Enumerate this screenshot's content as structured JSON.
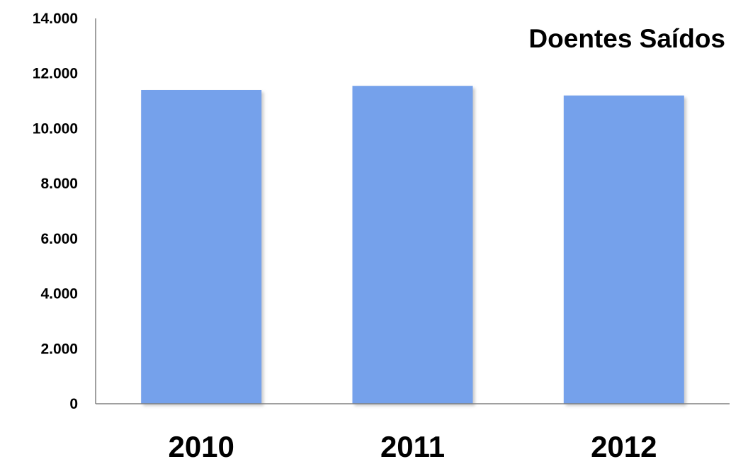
{
  "chart_data": {
    "type": "bar",
    "title": "Doentes Saídos",
    "xlabel": "",
    "ylabel": "",
    "categories": [
      "2010",
      "2011",
      "2012"
    ],
    "values": [
      11400,
      11550,
      11200
    ],
    "ylim": [
      0,
      14000
    ],
    "y_ticks": [
      0,
      2000,
      4000,
      6000,
      8000,
      10000,
      12000,
      14000
    ],
    "y_tick_labels": [
      "0",
      "2.000",
      "4.000",
      "6.000",
      "8.000",
      "10.000",
      "12.000",
      "14.000"
    ],
    "grid": false,
    "legend": "none",
    "colors": {
      "bar_fill": "#74a1eb",
      "axis": "#808080",
      "text": "#000000"
    }
  }
}
